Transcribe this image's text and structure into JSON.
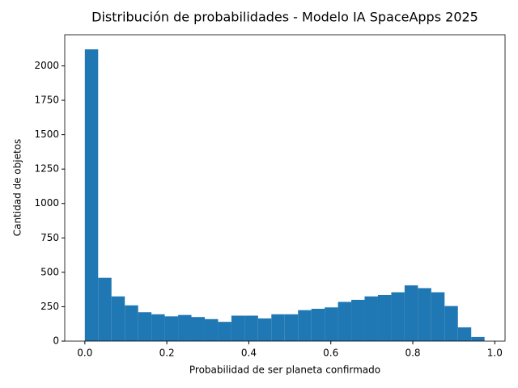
{
  "chart_data": {
    "type": "histogram",
    "title": "Distribución de probabilidades - Modelo IA SpaceApps 2025",
    "xlabel": "Probabilidad de ser planeta confirmado",
    "ylabel": "Cantidad de objetos",
    "color": "#1f77b4",
    "bins": [
      0,
      0.0325,
      0.065,
      0.0975,
      0.13,
      0.1625,
      0.195,
      0.2275,
      0.26,
      0.2925,
      0.325,
      0.3575,
      0.39,
      0.4225,
      0.455,
      0.4875,
      0.52,
      0.5525,
      0.585,
      0.6175,
      0.65,
      0.6825,
      0.715,
      0.7475,
      0.78,
      0.8125,
      0.845,
      0.8775,
      0.91,
      0.9425,
      0.975
    ],
    "values": [
      2120,
      460,
      325,
      260,
      210,
      195,
      180,
      190,
      175,
      160,
      140,
      185,
      185,
      165,
      195,
      195,
      225,
      235,
      245,
      285,
      300,
      325,
      335,
      355,
      405,
      385,
      355,
      255,
      100,
      30
    ],
    "xlim": [
      -0.049,
      1.025
    ],
    "ylim": [
      0,
      2226
    ],
    "xticks": [
      {
        "value": 0,
        "label": "0.0"
      },
      0.2,
      0.4,
      0.6,
      0.8,
      {
        "value": 1,
        "label": "1.0"
      }
    ],
    "yticks": [
      0,
      250,
      500,
      750,
      1000,
      1250,
      1500,
      1750,
      2000
    ]
  }
}
